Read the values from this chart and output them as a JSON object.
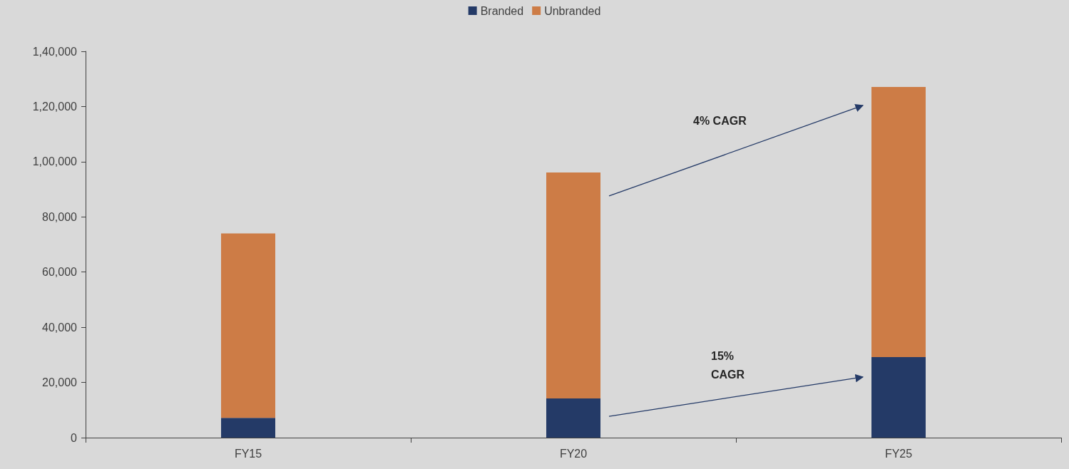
{
  "chart_data": {
    "type": "bar",
    "stacked": true,
    "categories": [
      "FY15",
      "FY20",
      "FY25"
    ],
    "series": [
      {
        "name": "Branded",
        "color": "#243a67",
        "values": [
          7200,
          14200,
          29200
        ]
      },
      {
        "name": "Unbranded",
        "color": "#cd7c46",
        "values": [
          66800,
          81900,
          97900
        ]
      }
    ],
    "ylim": [
      0,
      140000
    ],
    "yticks": [
      0,
      {
        "value": 20000,
        "label": "20,000"
      },
      {
        "value": 40000,
        "label": "40,000"
      },
      {
        "value": 60000,
        "label": "60,000"
      },
      {
        "value": 80000,
        "label": "80,000"
      },
      {
        "value": 100000,
        "label": "1,00,000"
      },
      {
        "value": 120000,
        "label": "1,20,000"
      },
      {
        "value": 140000,
        "label": "1,40,000"
      }
    ],
    "annotations": [
      "4% CAGR",
      "15% CAGR"
    ],
    "grid": false,
    "legend": "top"
  }
}
